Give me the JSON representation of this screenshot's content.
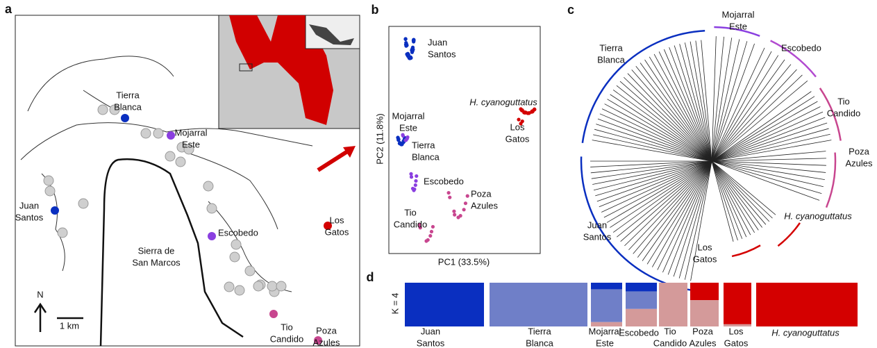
{
  "panel_a": {
    "label": "a",
    "sites": [
      [
        "Tierra",
        "Blanca"
      ],
      [
        "Mojarral",
        "Este"
      ],
      [
        "Juan",
        "Santos"
      ],
      [
        "Escobedo"
      ],
      [
        "Los",
        "Gatos"
      ],
      [
        "Sierra de",
        "San Marcos"
      ],
      [
        "Tio",
        "Candido"
      ],
      [
        "Poza",
        "Azules"
      ]
    ],
    "north": "N",
    "scale": "1 km"
  },
  "panel_b": {
    "label": "b",
    "groups": [
      [
        "Juan",
        "Santos"
      ],
      [
        "Mojarral",
        "Este"
      ],
      [
        "Tierra",
        "Blanca"
      ],
      [
        "Escobedo"
      ],
      [
        "Poza",
        "Azules"
      ],
      [
        "Tio",
        "Candido"
      ],
      [
        "Los",
        "Gatos"
      ]
    ],
    "species": "H. cyanoguttatus",
    "x_label": "PC1 (33.5%)",
    "y_label": "PC2 (11.8%)"
  },
  "panel_c": {
    "label": "c",
    "groups": [
      [
        "Mojarral",
        "Este"
      ],
      [
        "Tierra",
        "Blanca"
      ],
      [
        "Escobedo"
      ],
      [
        "Tio",
        "Candido"
      ],
      [
        "Poza",
        "Azules"
      ],
      [
        "Juan",
        "Santos"
      ],
      [
        "Los",
        "Gatos"
      ]
    ],
    "species": "H. cyanoguttatus"
  },
  "panel_d": {
    "label": "d",
    "k_label": "K = 4",
    "groups": [
      [
        "Juan",
        "Santos"
      ],
      [
        "Tierra",
        "Blanca"
      ],
      [
        "Mojarral",
        "Este"
      ],
      [
        "Escobedo"
      ],
      [
        "Tio",
        "Candido"
      ],
      [
        "Poza",
        "Azules"
      ],
      [
        "Los",
        "Gatos"
      ]
    ],
    "species": "H. cyanoguttatus"
  }
}
